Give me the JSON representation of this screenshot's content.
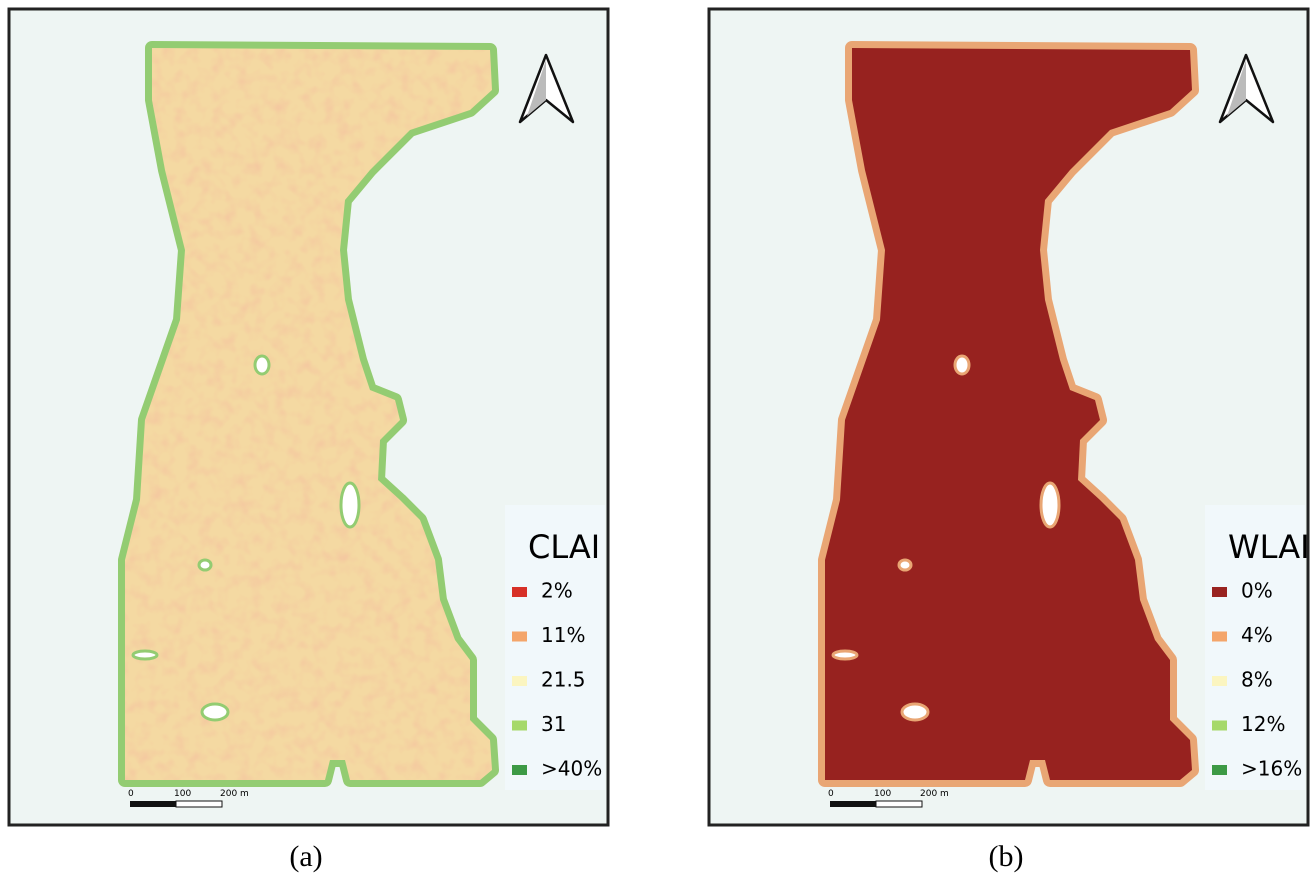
{
  "panels": [
    {
      "legend": {
        "title": "CLAI",
        "items": [
          {
            "label": "2%",
            "color": "#d73027"
          },
          {
            "label": "11%",
            "color": "#f4a56a"
          },
          {
            "label": "21.5",
            "color": "#fbf5c0"
          },
          {
            "label": "31",
            "color": "#a6d96a"
          },
          {
            "label": ">40%",
            "color": "#3d9a45"
          }
        ]
      },
      "scale_bar": {
        "labels": [
          "0",
          "100",
          "200 m"
        ]
      },
      "caption": "(a)"
    },
    {
      "legend": {
        "title": "WLAI",
        "items": [
          {
            "label": "0%",
            "color": "#992320"
          },
          {
            "label": "4%",
            "color": "#f4a56a"
          },
          {
            "label": "8%",
            "color": "#fbf5c0"
          },
          {
            "label": "12%",
            "color": "#a6d96a"
          },
          {
            "label": ">16%",
            "color": "#3d9a45"
          }
        ]
      },
      "scale_bar": {
        "labels": [
          "0",
          "100",
          "200 m"
        ]
      },
      "caption": "(b)"
    }
  ]
}
